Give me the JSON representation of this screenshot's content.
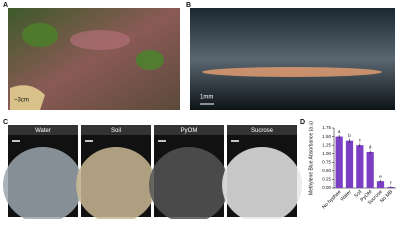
{
  "panels": {
    "A": {
      "label": "A",
      "scale": "~3cm"
    },
    "B": {
      "label": "B",
      "scale": "1mm"
    },
    "C": {
      "label": "C",
      "conditions": [
        "Water",
        "Soil",
        "PyOM",
        "Sucrose"
      ]
    },
    "D": {
      "label": "D"
    }
  },
  "chart_data": {
    "type": "bar",
    "y_label": "Methylene Blue Absorbance (a.u)",
    "categories": [
      "No hyphae",
      "Water",
      "Soil",
      "PyOM",
      "Sucrose",
      "No MB"
    ],
    "values": [
      1.5,
      1.38,
      1.25,
      1.05,
      0.2,
      0.03
    ],
    "errors": [
      0.05,
      0.06,
      0.05,
      0.05,
      0.04,
      0.02
    ],
    "annotations": [
      "a",
      "b",
      "c",
      "d",
      "e",
      "f"
    ],
    "color": "#7b3fc4",
    "ylim": [
      0,
      1.75
    ],
    "yticks": [
      {
        "value": 0,
        "label": "0.00"
      },
      {
        "value": 0.25,
        "label": "0.25"
      },
      {
        "value": 0.5,
        "label": "0.50"
      },
      {
        "value": 0.75,
        "label": "0.75"
      },
      {
        "value": 1,
        "label": "1.00"
      },
      {
        "value": 1.25,
        "label": "1.25"
      },
      {
        "value": 1.5,
        "label": "1.50"
      },
      {
        "value": 1.75,
        "label": "1.75"
      }
    ]
  }
}
